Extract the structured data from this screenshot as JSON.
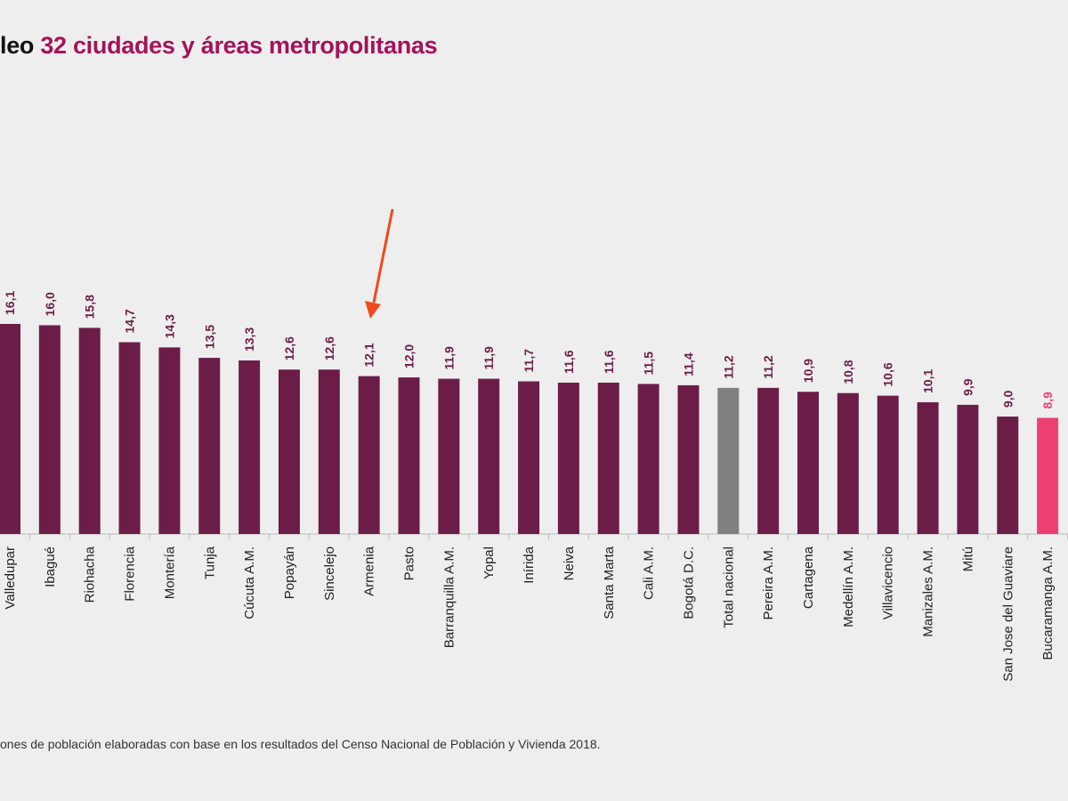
{
  "header": {
    "title_prefix": "leo",
    "title_highlight": "32 ciudades y áreas metropolitanas"
  },
  "footnote": "ones de población elaboradas con base en los resultados del Censo Nacional de Población y Vivienda 2018.",
  "colors": {
    "bar": "#6b1d48",
    "national": "#808080",
    "highlight": "#ee3f72",
    "label": "#6b1d48",
    "arrow": "#f04a1c"
  },
  "chart_data": {
    "type": "bar",
    "title": "32 ciudades y áreas metropolitanas",
    "xlabel": "",
    "ylabel": "",
    "ylim": [
      0,
      16.5
    ],
    "grid": false,
    "annotations": [
      "arrow pointing to Armenia"
    ],
    "categories": [
      "Valledupar",
      "Ibagué",
      "Riohacha",
      "Florencia",
      "Montería",
      "Tunja",
      "Cúcuta A.M.",
      "Popayán",
      "Sincelejo",
      "Armenia",
      "Pasto",
      "Barranquilla A.M.",
      "Yopal",
      "Inírida",
      "Neiva",
      "Santa Marta",
      "Cali A.M.",
      "Bogotá D.C.",
      "Total nacional",
      "Pereira A.M.",
      "Cartagena",
      "Medellín A.M.",
      "Villavicencio",
      "Manizales A.M.",
      "Mitú",
      "San Jose del Guaviare",
      "Bucaramanga A.M."
    ],
    "values": [
      16.1,
      16.0,
      15.8,
      14.7,
      14.3,
      13.5,
      13.3,
      12.6,
      12.6,
      12.1,
      12.0,
      11.9,
      11.9,
      11.7,
      11.6,
      11.6,
      11.5,
      11.4,
      11.2,
      11.2,
      10.9,
      10.8,
      10.6,
      10.1,
      9.9,
      9.0,
      8.9
    ],
    "value_labels": [
      "16,1",
      "16,0",
      "15,8",
      "14,7",
      "14,3",
      "13,5",
      "13,3",
      "12,6",
      "12,6",
      "12,1",
      "12,0",
      "11,9",
      "11,9",
      "11,7",
      "11,6",
      "11,6",
      "11,5",
      "11,4",
      "11,2",
      "11,2",
      "10,9",
      "10,8",
      "10,6",
      "10,1",
      "9,9",
      "9,0",
      "8,9"
    ]
  }
}
